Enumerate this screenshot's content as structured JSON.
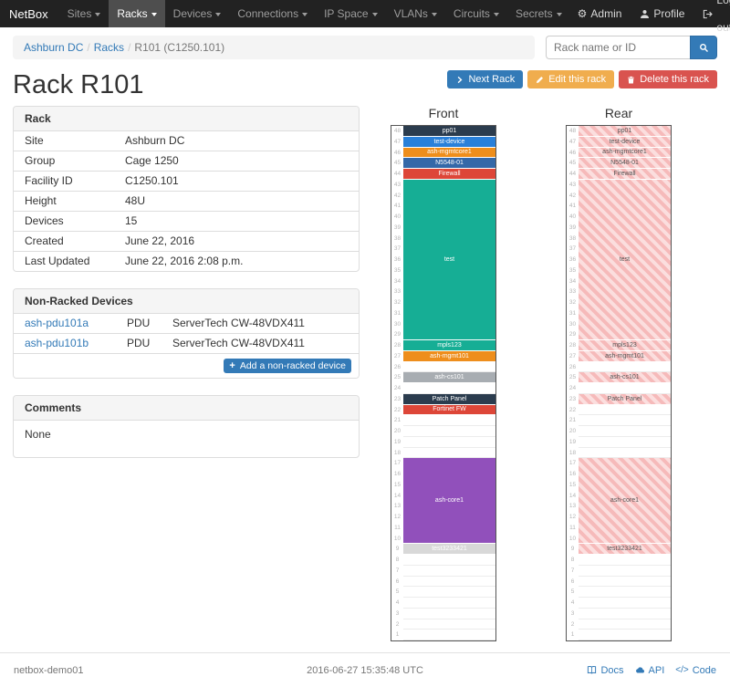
{
  "navbar": {
    "brand": "NetBox",
    "items": [
      {
        "label": "Sites"
      },
      {
        "label": "Racks",
        "active": true
      },
      {
        "label": "Devices"
      },
      {
        "label": "Connections"
      },
      {
        "label": "IP Space"
      },
      {
        "label": "VLANs"
      },
      {
        "label": "Circuits"
      },
      {
        "label": "Secrets"
      }
    ],
    "right": [
      {
        "label": "Admin",
        "icon": "gear"
      },
      {
        "label": "Profile",
        "icon": "user"
      },
      {
        "label": "Log out",
        "icon": "logout"
      }
    ]
  },
  "breadcrumb": {
    "items": [
      {
        "label": "Ashburn DC",
        "link": true
      },
      {
        "label": "Racks",
        "link": true
      },
      {
        "label": "R101 (C1250.101)",
        "link": false
      }
    ]
  },
  "search": {
    "placeholder": "Rack name or ID"
  },
  "actions": {
    "next": "Next Rack",
    "edit": "Edit this rack",
    "delete": "Delete this rack"
  },
  "page": {
    "title": "Rack R101"
  },
  "rack_panel": {
    "title": "Rack",
    "rows": [
      {
        "label": "Site",
        "value": "Ashburn DC",
        "link": true
      },
      {
        "label": "Group",
        "value": "Cage 1250",
        "link": true
      },
      {
        "label": "Facility ID",
        "value": "C1250.101",
        "link": false
      },
      {
        "label": "Height",
        "value": "48U",
        "link": false
      },
      {
        "label": "Devices",
        "value": "15",
        "link": true
      },
      {
        "label": "Created",
        "value": "June 22, 2016",
        "link": false
      },
      {
        "label": "Last Updated",
        "value": "June 22, 2016 2:08 p.m.",
        "link": false
      }
    ]
  },
  "nonracked_panel": {
    "title": "Non-Racked Devices",
    "rows": [
      {
        "name": "ash-pdu101a",
        "role": "PDU",
        "model": "ServerTech CW-48VDX411"
      },
      {
        "name": "ash-pdu101b",
        "role": "PDU",
        "model": "ServerTech CW-48VDX411"
      }
    ],
    "add_label": "Add a non-racked device"
  },
  "comments_panel": {
    "title": "Comments",
    "body": "None"
  },
  "elevation": {
    "units": 48,
    "front": {
      "label": "Front",
      "devices": [
        {
          "u": 48,
          "size": 1,
          "name": "pp01",
          "color": "#2b3c4e"
        },
        {
          "u": 47,
          "size": 1,
          "name": "test-device",
          "color": "#2980d9"
        },
        {
          "u": 46,
          "size": 1,
          "name": "ash-mgmtcore1",
          "color": "#ee8e1c"
        },
        {
          "u": 45,
          "size": 1,
          "name": "N5548-01",
          "color": "#3468a8"
        },
        {
          "u": 44,
          "size": 1,
          "name": "Firewall",
          "color": "#dd4638"
        },
        {
          "u": 43,
          "size": 15,
          "name": "test",
          "color": "#16ae95"
        },
        {
          "u": 28,
          "size": 1,
          "name": "mpls123",
          "color": "#16ae95"
        },
        {
          "u": 27,
          "size": 1,
          "name": "ash-mgmt101",
          "color": "#ee8e1c"
        },
        {
          "u": 25,
          "size": 1,
          "name": "ash-cs101",
          "color": "#a8adb2"
        },
        {
          "u": 23,
          "size": 1,
          "name": "Patch Panel",
          "color": "#2b3c4e"
        },
        {
          "u": 22,
          "size": 1,
          "name": "Fortinet FW",
          "color": "#dd4638"
        },
        {
          "u": 17,
          "size": 8,
          "name": "ash-core1",
          "color": "#9150bb"
        },
        {
          "u": 9,
          "size": 1,
          "name": "test3233421",
          "color": "#d8d8d8",
          "text": "#ffffff"
        }
      ]
    },
    "rear": {
      "label": "Rear",
      "devices": [
        {
          "u": 48,
          "size": 1,
          "name": "pp01"
        },
        {
          "u": 47,
          "size": 1,
          "name": "test-device"
        },
        {
          "u": 46,
          "size": 1,
          "name": "ash-mgmtcore1"
        },
        {
          "u": 45,
          "size": 1,
          "name": "N5548-01"
        },
        {
          "u": 44,
          "size": 1,
          "name": "Firewall"
        },
        {
          "u": 43,
          "size": 15,
          "name": "test"
        },
        {
          "u": 28,
          "size": 1,
          "name": "mpls123"
        },
        {
          "u": 27,
          "size": 1,
          "name": "ash-mgmt101"
        },
        {
          "u": 25,
          "size": 1,
          "name": "ash-cs101"
        },
        {
          "u": 23,
          "size": 1,
          "name": "Patch Panel"
        },
        {
          "u": 17,
          "size": 8,
          "name": "ash-core1"
        },
        {
          "u": 9,
          "size": 1,
          "name": "test3233421"
        }
      ]
    }
  },
  "footer": {
    "hostname": "netbox-demo01",
    "timestamp": "2016-06-27 15:35:48 UTC",
    "links": [
      {
        "label": "Docs",
        "icon": "book"
      },
      {
        "label": "API",
        "icon": "cloud"
      },
      {
        "label": "Code",
        "icon": "code"
      }
    ]
  },
  "colors": {
    "link": "#337ab7",
    "navbar_bg": "#222222",
    "primary": "#337ab7",
    "warning": "#f0ad4e",
    "danger": "#d9534f"
  }
}
